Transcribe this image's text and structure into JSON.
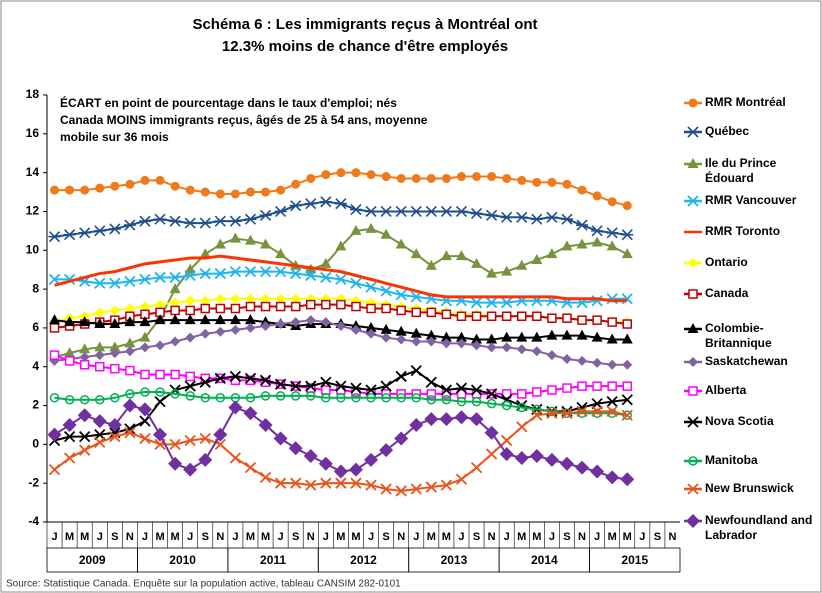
{
  "chart_data": {
    "type": "line",
    "title_lines": [
      "Schéma 6 : Les immigrants reçus à Montréal ont",
      "12.3% moins de chance d'être employés"
    ],
    "note_lines": [
      "ÉCART en point de pourcentage dans le taux d'emploi;  nés",
      "Canada MOINS immigrants reçus, âgés de 25 à 54 ans, moyenne",
      "mobile sur 36 mois"
    ],
    "source": "Source: Statistique Canada. Enquête sur la population active, tableau CANSIM 282-0101",
    "years": [
      "2009",
      "2010",
      "2011",
      "2012",
      "2013",
      "2014",
      "2015"
    ],
    "categories": [
      "J",
      "M",
      "M",
      "J",
      "S",
      "N",
      "J",
      "M",
      "M",
      "J",
      "S",
      "N",
      "J",
      "M",
      "M",
      "J",
      "S",
      "N",
      "J",
      "M",
      "M",
      "J",
      "S",
      "N",
      "J",
      "M",
      "M",
      "J",
      "S",
      "N",
      "J",
      "M",
      "M",
      "J",
      "S",
      "N",
      "J",
      "M",
      "M",
      "J",
      "S",
      "N"
    ],
    "ylim": [
      -4,
      18
    ],
    "yticks": [
      -4,
      -2,
      0,
      2,
      4,
      6,
      8,
      10,
      12,
      14,
      16,
      18
    ],
    "grid": false,
    "series": [
      {
        "name": "RMR Montréal",
        "color": "#f07a1a",
        "marker": "circle",
        "values": [
          13.1,
          13.1,
          13.1,
          13.2,
          13.3,
          13.4,
          13.6,
          13.6,
          13.3,
          13.1,
          13.0,
          12.9,
          12.9,
          13.0,
          13.0,
          13.1,
          13.4,
          13.7,
          13.9,
          14.0,
          14.0,
          13.9,
          13.8,
          13.7,
          13.7,
          13.7,
          13.7,
          13.8,
          13.8,
          13.8,
          13.7,
          13.6,
          13.5,
          13.5,
          13.4,
          13.1,
          12.8,
          12.5,
          12.3,
          null,
          null,
          null
        ]
      },
      {
        "name": "Québec",
        "color": "#1f4e8c",
        "marker": "star",
        "values": [
          10.7,
          10.8,
          10.9,
          11.0,
          11.1,
          11.3,
          11.5,
          11.6,
          11.5,
          11.4,
          11.4,
          11.5,
          11.5,
          11.6,
          11.8,
          12.0,
          12.3,
          12.4,
          12.5,
          12.4,
          12.1,
          12.0,
          12.0,
          12.0,
          12.0,
          12.0,
          12.0,
          12.0,
          11.9,
          11.8,
          11.7,
          11.7,
          11.6,
          11.7,
          11.6,
          11.3,
          11.0,
          10.9,
          10.8,
          null,
          null,
          null
        ]
      },
      {
        "name": "Ile du Prince Édouard",
        "color": "#77933c",
        "marker": "triangle",
        "values": [
          4.5,
          4.7,
          4.9,
          5.0,
          5.0,
          5.2,
          5.5,
          6.5,
          8.0,
          9.0,
          9.8,
          10.3,
          10.6,
          10.5,
          10.3,
          9.8,
          9.2,
          9.0,
          9.3,
          10.2,
          11.0,
          11.1,
          10.8,
          10.3,
          9.8,
          9.2,
          9.7,
          9.7,
          9.3,
          8.8,
          8.9,
          9.2,
          9.5,
          9.8,
          10.2,
          10.3,
          10.4,
          10.2,
          9.8,
          null,
          null,
          null
        ]
      },
      {
        "name": "RMR Vancouver",
        "color": "#1eb4ee",
        "marker": "x",
        "values": [
          8.5,
          8.5,
          8.4,
          8.3,
          8.3,
          8.4,
          8.5,
          8.6,
          8.6,
          8.7,
          8.8,
          8.8,
          8.9,
          8.9,
          8.9,
          8.9,
          8.8,
          8.7,
          8.6,
          8.5,
          8.3,
          8.1,
          7.9,
          7.7,
          7.6,
          7.5,
          7.4,
          7.4,
          7.3,
          7.3,
          7.3,
          7.4,
          7.4,
          7.4,
          7.3,
          7.3,
          7.4,
          7.5,
          7.5,
          null,
          null,
          null
        ]
      },
      {
        "name": "RMR Toronto",
        "color": "#ff3300",
        "marker": "none",
        "values": [
          8.2,
          8.4,
          8.6,
          8.8,
          8.9,
          9.1,
          9.3,
          9.4,
          9.5,
          9.6,
          9.6,
          9.7,
          9.6,
          9.5,
          9.4,
          9.3,
          9.2,
          9.1,
          9.0,
          8.9,
          8.7,
          8.5,
          8.3,
          8.1,
          7.9,
          7.7,
          7.6,
          7.6,
          7.6,
          7.6,
          7.6,
          7.6,
          7.6,
          7.6,
          7.5,
          7.5,
          7.5,
          7.4,
          7.4,
          null,
          null,
          null
        ]
      },
      {
        "name": "Ontario",
        "color": "#ffff00",
        "marker": "diamond",
        "values": [
          6.3,
          6.5,
          6.6,
          6.8,
          6.9,
          7.0,
          7.1,
          7.2,
          7.3,
          7.4,
          7.4,
          7.5,
          7.5,
          7.5,
          7.5,
          7.5,
          7.5,
          7.5,
          7.5,
          7.5,
          7.4,
          7.3,
          7.2,
          7.1,
          7.0,
          6.9,
          6.8,
          6.7,
          6.7,
          6.6,
          6.6,
          6.6,
          6.6,
          6.5,
          6.5,
          6.4,
          6.4,
          6.3,
          6.3,
          null,
          null,
          null
        ]
      },
      {
        "name": "Canada",
        "color": "#c00000",
        "marker": "square-hollow",
        "values": [
          6.0,
          6.1,
          6.2,
          6.3,
          6.4,
          6.6,
          6.7,
          6.8,
          6.9,
          6.9,
          7.0,
          7.0,
          7.0,
          7.1,
          7.1,
          7.1,
          7.1,
          7.2,
          7.2,
          7.2,
          7.1,
          7.0,
          7.0,
          6.9,
          6.8,
          6.8,
          6.7,
          6.6,
          6.6,
          6.6,
          6.6,
          6.6,
          6.6,
          6.5,
          6.5,
          6.4,
          6.4,
          6.3,
          6.2,
          null,
          null,
          null
        ]
      },
      {
        "name": "Colombie-Britannique",
        "color": "#000000",
        "marker": "triangle",
        "values": [
          6.4,
          6.3,
          6.3,
          6.2,
          6.2,
          6.3,
          6.3,
          6.4,
          6.4,
          6.4,
          6.4,
          6.4,
          6.4,
          6.4,
          6.3,
          6.2,
          6.1,
          6.2,
          6.2,
          6.2,
          6.1,
          6.0,
          5.9,
          5.8,
          5.7,
          5.6,
          5.5,
          5.5,
          5.4,
          5.4,
          5.5,
          5.5,
          5.5,
          5.6,
          5.6,
          5.6,
          5.5,
          5.4,
          5.4,
          null,
          null,
          null
        ]
      },
      {
        "name": "Saskatchewan",
        "color": "#8064a2",
        "marker": "diamond",
        "values": [
          4.3,
          4.4,
          4.5,
          4.6,
          4.7,
          4.8,
          5.0,
          5.1,
          5.3,
          5.5,
          5.7,
          5.8,
          5.9,
          6.0,
          6.1,
          6.2,
          6.3,
          6.4,
          6.3,
          6.1,
          5.9,
          5.7,
          5.5,
          5.4,
          5.3,
          5.3,
          5.2,
          5.2,
          5.1,
          5.0,
          5.0,
          4.9,
          4.8,
          4.6,
          4.4,
          4.3,
          4.2,
          4.1,
          4.1,
          null,
          null,
          null
        ]
      },
      {
        "name": "Alberta",
        "color": "#ff00ff",
        "marker": "square-hollow",
        "values": [
          4.6,
          4.3,
          4.1,
          4.0,
          3.9,
          3.8,
          3.6,
          3.6,
          3.6,
          3.5,
          3.4,
          3.4,
          3.3,
          3.3,
          3.2,
          3.1,
          3.0,
          2.9,
          2.8,
          2.8,
          2.7,
          2.6,
          2.6,
          2.6,
          2.6,
          2.6,
          2.6,
          2.6,
          2.6,
          2.6,
          2.6,
          2.6,
          2.7,
          2.8,
          2.9,
          3.0,
          3.0,
          3.0,
          3.0,
          null,
          null,
          null
        ]
      },
      {
        "name": "Nova Scotia",
        "color": "#000000",
        "marker": "x",
        "values": [
          0.2,
          0.4,
          0.4,
          0.5,
          0.6,
          0.8,
          1.2,
          2.2,
          2.8,
          3.0,
          3.2,
          3.4,
          3.5,
          3.4,
          3.3,
          3.1,
          3.0,
          3.0,
          3.2,
          3.0,
          2.9,
          2.8,
          3.0,
          3.5,
          3.8,
          3.2,
          2.8,
          2.9,
          2.8,
          2.6,
          2.3,
          2.0,
          1.8,
          1.7,
          1.7,
          1.9,
          2.1,
          2.2,
          2.3,
          null,
          null,
          null
        ]
      },
      {
        "name": "Manitoba",
        "color": "#00b050",
        "marker": "circle-hollow",
        "values": [
          2.4,
          2.3,
          2.3,
          2.3,
          2.4,
          2.6,
          2.7,
          2.7,
          2.6,
          2.5,
          2.4,
          2.4,
          2.4,
          2.4,
          2.5,
          2.5,
          2.5,
          2.5,
          2.4,
          2.4,
          2.4,
          2.4,
          2.4,
          2.4,
          2.4,
          2.3,
          2.3,
          2.2,
          2.2,
          2.1,
          2.0,
          1.9,
          1.8,
          1.7,
          1.6,
          1.6,
          1.6,
          1.6,
          1.5,
          null,
          null,
          null
        ]
      },
      {
        "name": "New Brunswick",
        "color": "#e8541b",
        "marker": "x",
        "values": [
          -1.3,
          -0.7,
          -0.3,
          0.1,
          0.4,
          0.6,
          0.3,
          0.0,
          0.0,
          0.2,
          0.3,
          0.0,
          -0.7,
          -1.2,
          -1.7,
          -2.0,
          -2.0,
          -2.1,
          -2.0,
          -2.0,
          -2.0,
          -2.1,
          -2.3,
          -2.4,
          -2.3,
          -2.2,
          -2.1,
          -1.8,
          -1.2,
          -0.5,
          0.2,
          0.9,
          1.5,
          1.6,
          1.6,
          1.7,
          1.7,
          1.7,
          1.5,
          null,
          null,
          null
        ]
      },
      {
        "name": "Newfoundland and Labrador",
        "color": "#7030a0",
        "marker": "diamond-big",
        "values": [
          0.5,
          1.0,
          1.5,
          1.2,
          1.0,
          2.0,
          1.8,
          0.5,
          -1.0,
          -1.3,
          -0.8,
          0.5,
          1.9,
          1.6,
          1.0,
          0.3,
          -0.2,
          -0.6,
          -1.0,
          -1.4,
          -1.3,
          -0.8,
          -0.3,
          0.3,
          1.0,
          1.3,
          1.3,
          1.4,
          1.3,
          0.6,
          -0.5,
          -0.7,
          -0.6,
          -0.8,
          -1.0,
          -1.2,
          -1.4,
          -1.7,
          -1.8,
          null,
          null,
          null
        ]
      }
    ]
  }
}
